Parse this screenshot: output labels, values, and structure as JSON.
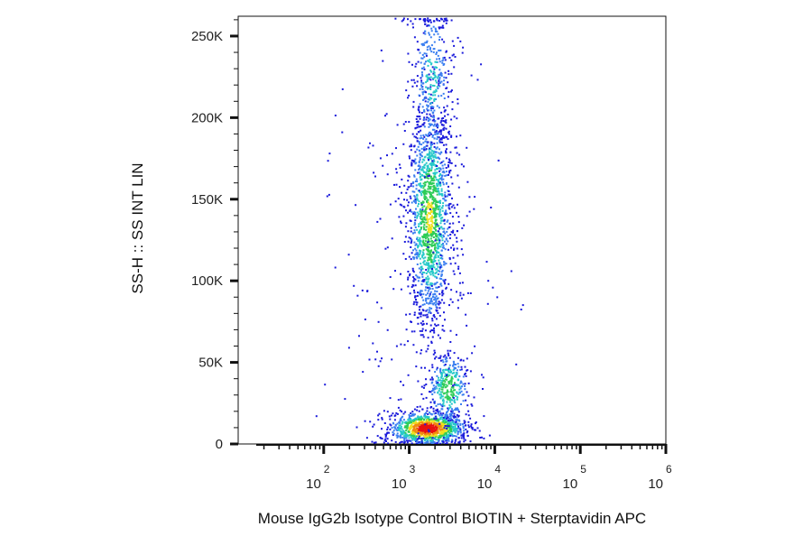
{
  "chart_data": {
    "type": "scatter",
    "subtype": "flow-cytometry-density-dot-plot",
    "xlabel": "Mouse IgG2b Isotype Control BIOTIN  + Sterptavidin APC",
    "ylabel": "SS-H :: SS INT LIN",
    "x_scale": "log",
    "xlim": [
      10,
      1000000
    ],
    "ylim": [
      0,
      262144
    ],
    "x_ticks": [
      {
        "value": 100,
        "base": "10",
        "exp": "2"
      },
      {
        "value": 1000,
        "base": "10",
        "exp": "3"
      },
      {
        "value": 10000,
        "base": "10",
        "exp": "4"
      },
      {
        "value": 100000,
        "base": "10",
        "exp": "5"
      },
      {
        "value": 1000000,
        "base": "10",
        "exp": "6"
      }
    ],
    "y_ticks": [
      {
        "value": 0,
        "label": "0"
      },
      {
        "value": 50000,
        "label": "50K"
      },
      {
        "value": 100000,
        "label": "100K"
      },
      {
        "value": 150000,
        "label": "150K"
      },
      {
        "value": 200000,
        "label": "200K"
      },
      {
        "value": 250000,
        "label": "250K"
      }
    ],
    "density_colors": [
      "#1a1adb",
      "#3b7ff0",
      "#26c9c9",
      "#2ecc57",
      "#f0e020",
      "#f08a10",
      "#e81010"
    ],
    "populations": [
      {
        "x_center": 1600,
        "x_log_sd": 0.22,
        "y_center": 10000,
        "y_sd": 5000,
        "count": 1100,
        "peak_density": 1.0
      },
      {
        "x_center": 2800,
        "x_log_sd": 0.12,
        "y_center": 35000,
        "y_sd": 11000,
        "count": 350,
        "peak_density": 0.55
      },
      {
        "x_center": 1700,
        "x_log_sd": 0.13,
        "y_center": 140000,
        "y_sd": 35000,
        "count": 1500,
        "peak_density": 0.6
      },
      {
        "x_center": 1800,
        "x_log_sd": 0.12,
        "y_center": 225000,
        "y_sd": 25000,
        "count": 350,
        "peak_density": 0.35
      },
      {
        "x_center": 1400,
        "x_log_sd": 0.45,
        "y_center": 100000,
        "y_sd": 70000,
        "count": 250,
        "peak_density": 0.1
      }
    ],
    "grid": false,
    "legend": "none"
  }
}
